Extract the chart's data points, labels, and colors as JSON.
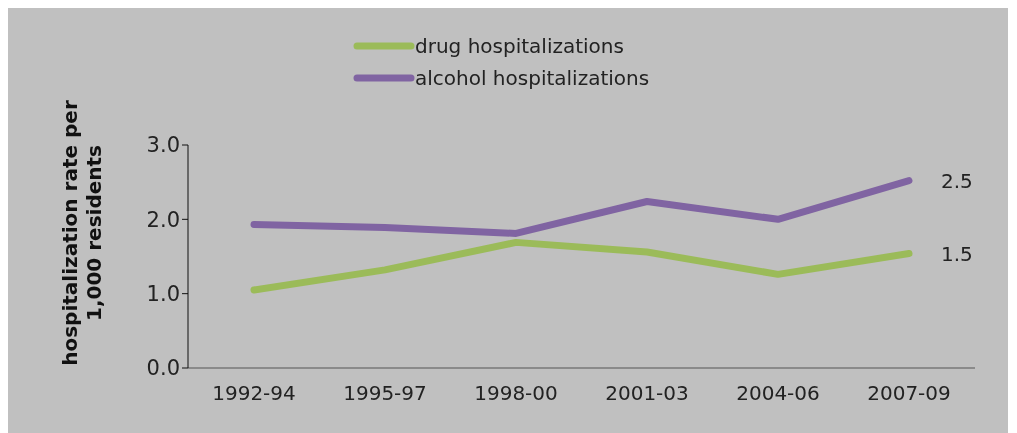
{
  "chart_data": {
    "type": "line",
    "ylabel": "hospitalization rate per 1,000 residents",
    "categories": [
      "1992-94",
      "1995-97",
      "1998-00",
      "2001-03",
      "2004-06",
      "2007-09"
    ],
    "series": [
      {
        "name": "drug hospitalizations",
        "color": "#9bbb59",
        "values": [
          1.05,
          1.32,
          1.69,
          1.56,
          1.26,
          1.54
        ],
        "value_labels": [
          null,
          null,
          null,
          null,
          null,
          "1.5"
        ]
      },
      {
        "name": "alcohol hospitalizations",
        "color": "#8064a2",
        "values": [
          1.93,
          1.89,
          1.81,
          2.24,
          2.0,
          2.52
        ],
        "value_labels": [
          null,
          null,
          null,
          null,
          null,
          "2.5"
        ]
      }
    ],
    "ylim": [
      0,
      3
    ],
    "yticks": [
      {
        "value": 0,
        "label": "0.0"
      },
      {
        "value": 1,
        "label": "1.0"
      },
      {
        "value": 2,
        "label": "2.0"
      },
      {
        "value": 3,
        "label": "3.0"
      }
    ],
    "grid": false,
    "legend": "top",
    "marker": "none",
    "line_style": "solid"
  }
}
